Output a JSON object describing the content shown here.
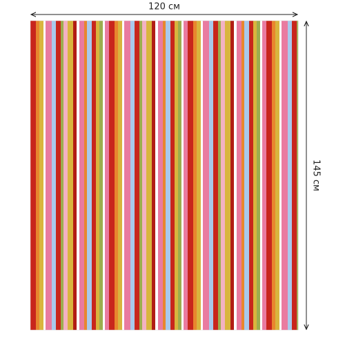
{
  "dimensions": {
    "width": "120 см",
    "height": "145 см"
  }
}
